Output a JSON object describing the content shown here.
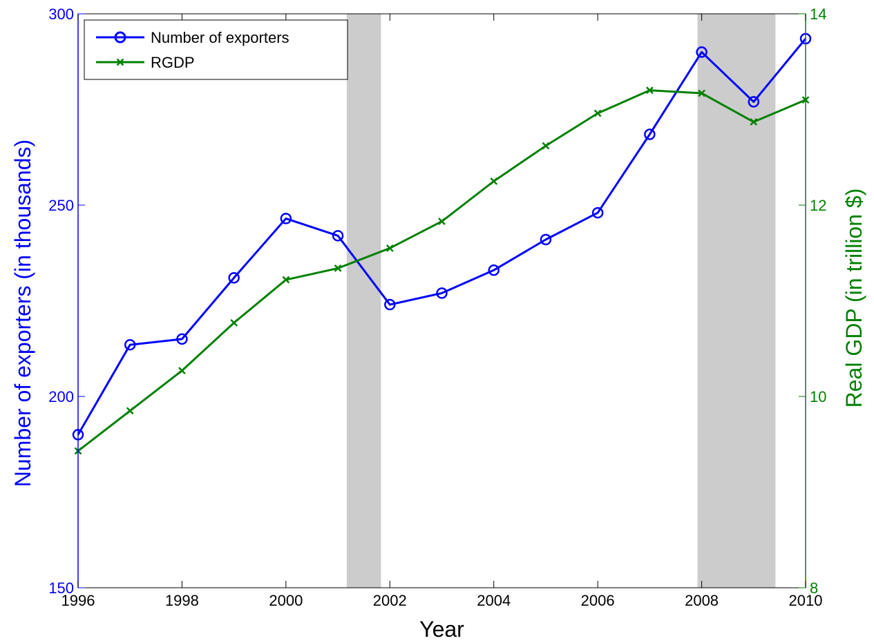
{
  "chart_data": {
    "type": "line",
    "title": "",
    "xlabel": "Year",
    "ylabel_left": "Number of exporters (in thousands)",
    "ylabel_right": "Real GDP (in trillion $)",
    "xlim": [
      1996,
      2010
    ],
    "ylim_left": [
      150,
      300
    ],
    "ylim_right": [
      8,
      14
    ],
    "x_ticks": [
      "1996",
      "1998",
      "2000",
      "2002",
      "2004",
      "2006",
      "2008",
      "2010"
    ],
    "y_left_ticks": [
      "150",
      "200",
      "250",
      "300"
    ],
    "y_right_ticks": [
      "8",
      "10",
      "12",
      "14"
    ],
    "grid": false,
    "legend_position": "top-left",
    "recession_shading": [
      {
        "start": 2001.17,
        "end": 2001.83
      },
      {
        "start": 2007.92,
        "end": 2009.42
      }
    ],
    "series": [
      {
        "name": "Number of exporters",
        "axis": "left",
        "color": "#0000ff",
        "marker": "circle",
        "x": [
          1996,
          1997,
          1998,
          1999,
          2000,
          2001,
          2002,
          2003,
          2004,
          2005,
          2006,
          2007,
          2008,
          2009,
          2010
        ],
        "values": [
          190,
          213.5,
          215,
          231,
          246.5,
          242,
          224,
          227,
          233,
          241,
          248,
          268.5,
          290,
          277,
          293.5
        ]
      },
      {
        "name": "RGDP",
        "axis": "right",
        "color": "#008000",
        "marker": "x",
        "x": [
          1996,
          1997,
          1998,
          1999,
          2000,
          2001,
          2002,
          2003,
          2004,
          2005,
          2006,
          2007,
          2008,
          2009,
          2010
        ],
        "values": [
          9.43,
          9.85,
          10.27,
          10.77,
          11.22,
          11.34,
          11.55,
          11.83,
          12.25,
          12.62,
          12.96,
          13.2,
          13.17,
          12.87,
          13.1
        ]
      }
    ]
  },
  "colors": {
    "left_axis": "#0000ff",
    "right_axis": "#008000",
    "shading": "#cccccc"
  }
}
